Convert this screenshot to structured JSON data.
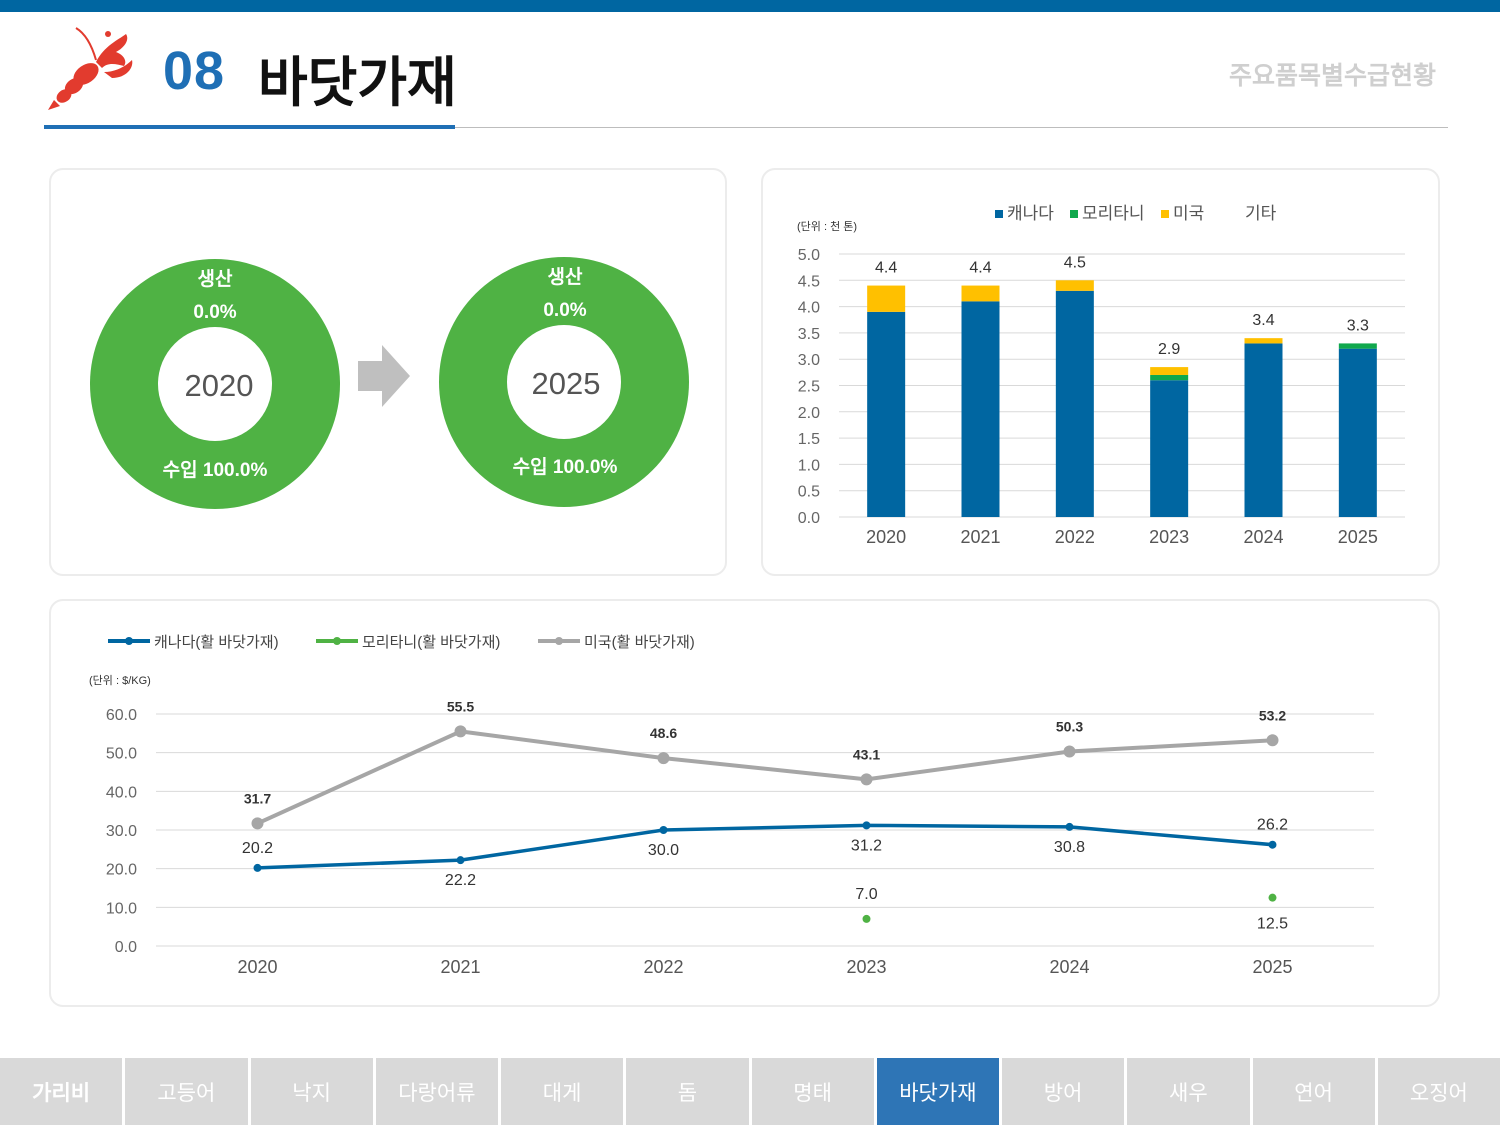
{
  "header": {
    "number": "08",
    "title": "바닷가재",
    "subtitle": "주요품목별수급현황",
    "icon": "lobster-icon"
  },
  "colors": {
    "accent": "#1f6fb5",
    "topbar": "#0066a1",
    "donut_green": "#4fb244",
    "canada": "#0066a1",
    "mauritania": "#10a84c",
    "usa": "#ffc000",
    "usa_line": "#a6a6a6",
    "mauritania_line": "#4fb244",
    "nav_active": "#2e75b6",
    "nav_inactive": "#d9d9d9"
  },
  "donuts": [
    {
      "year": "2020",
      "production_label": "생산",
      "production_pct": "0.0%",
      "import_label": "수입 100.0%",
      "production_value": 0.0,
      "import_value": 100.0
    },
    {
      "year": "2025",
      "production_label": "생산",
      "production_pct": "0.0%",
      "import_label": "수입 100.0%",
      "production_value": 0.0,
      "import_value": 100.0
    }
  ],
  "chart_data": [
    {
      "type": "bar",
      "stacked": true,
      "unit_label": "(단위 : 천 톤)",
      "categories": [
        "2020",
        "2021",
        "2022",
        "2023",
        "2024",
        "2025"
      ],
      "series": [
        {
          "name": "캐나다",
          "values": [
            3.9,
            4.1,
            4.3,
            2.6,
            3.3,
            3.2
          ]
        },
        {
          "name": "모리타니",
          "values": [
            0.0,
            0.0,
            0.0,
            0.1,
            0.0,
            0.1
          ]
        },
        {
          "name": "미국",
          "values": [
            0.5,
            0.3,
            0.2,
            0.15,
            0.1,
            0.0
          ]
        },
        {
          "name": "기타",
          "values": [
            0,
            0,
            0,
            0,
            0,
            0
          ]
        }
      ],
      "totals": [
        "4.4",
        "4.4",
        "4.5",
        "2.9",
        "3.4",
        "3.3"
      ],
      "ylim": [
        0,
        5.0
      ],
      "yticks": [
        "0.0",
        "0.5",
        "1.0",
        "1.5",
        "2.0",
        "2.5",
        "3.0",
        "3.5",
        "4.0",
        "4.5",
        "5.0"
      ],
      "legend_position": "top",
      "grid": true
    },
    {
      "type": "line",
      "unit_label": "(단위 : $/KG)",
      "categories": [
        "2020",
        "2021",
        "2022",
        "2023",
        "2024",
        "2025"
      ],
      "series": [
        {
          "name": "캐나다(활 바닷가재)",
          "values": [
            20.2,
            22.2,
            30.0,
            31.2,
            30.8,
            26.2
          ],
          "labels": [
            "20.2",
            "22.2",
            "30.0",
            "31.2",
            "30.8",
            "26.2"
          ]
        },
        {
          "name": "모리타니(활 바닷가재)",
          "values": [
            null,
            null,
            null,
            7.0,
            null,
            12.5
          ],
          "labels": [
            "",
            "",
            "",
            "7.0",
            "",
            "12.5"
          ]
        },
        {
          "name": "미국(활 바닷가재)",
          "values": [
            31.7,
            55.5,
            48.6,
            43.1,
            50.3,
            53.2
          ],
          "labels": [
            "31.7",
            "55.5",
            "48.6",
            "43.1",
            "50.3",
            "53.2"
          ]
        }
      ],
      "ylim": [
        0,
        60.0
      ],
      "yticks": [
        "0.0",
        "10.0",
        "20.0",
        "30.0",
        "40.0",
        "50.0",
        "60.0"
      ],
      "legend_position": "top-left",
      "grid": true
    }
  ],
  "nav": {
    "tabs": [
      "가리비",
      "고등어",
      "낙지",
      "다랑어류",
      "대게",
      "돔",
      "명태",
      "바닷가재",
      "방어",
      "새우",
      "연어",
      "오징어"
    ],
    "active": "바닷가재"
  }
}
